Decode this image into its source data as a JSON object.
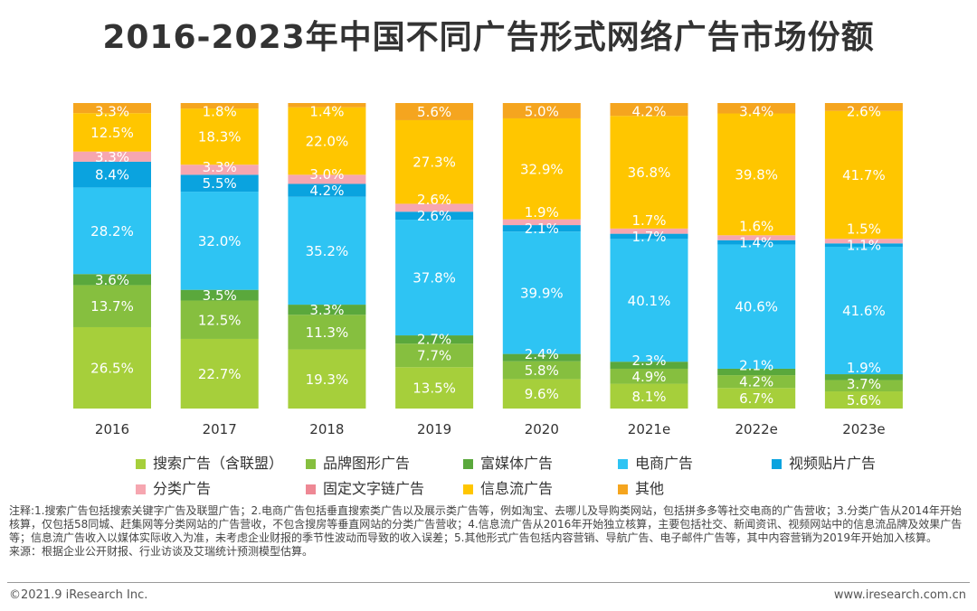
{
  "chart_data": {
    "type": "bar",
    "stacked": true,
    "title": "2016-2023年中国不同广告形式网络广告市场份额",
    "categories": [
      "2016",
      "2017",
      "2018",
      "2019",
      "2020",
      "2021e",
      "2022e",
      "2023e"
    ],
    "ylim": [
      0,
      100
    ],
    "unit": "%",
    "grid": false,
    "legend_placement": "bottom",
    "series": [
      {
        "name": "搜索广告（含联盟）",
        "color": "#a6cf3b",
        "values": [
          26.5,
          22.7,
          19.3,
          13.5,
          9.6,
          8.1,
          6.7,
          5.6
        ]
      },
      {
        "name": "品牌图形广告",
        "color": "#86bf3f",
        "values": [
          13.7,
          12.5,
          11.3,
          7.7,
          5.8,
          4.9,
          4.2,
          3.7
        ]
      },
      {
        "name": "富媒体广告",
        "color": "#5aa83c",
        "values": [
          3.6,
          3.5,
          3.3,
          2.7,
          2.4,
          2.3,
          2.1,
          1.9
        ]
      },
      {
        "name": "电商广告",
        "color": "#2ec4f3",
        "values": [
          28.2,
          32.0,
          35.2,
          37.8,
          39.9,
          40.1,
          40.6,
          41.6
        ]
      },
      {
        "name": "视频贴片广告",
        "color": "#0aa3df",
        "values": [
          8.4,
          5.5,
          4.2,
          2.6,
          2.1,
          1.7,
          1.4,
          1.1
        ]
      },
      {
        "name": "分类广告",
        "color": "#f6a6b0",
        "values": [
          3.3,
          3.3,
          3.0,
          2.6,
          1.9,
          1.7,
          1.6,
          1.5
        ]
      },
      {
        "name": "固定文字链广告",
        "color": "#ee8894",
        "values": [
          null,
          null,
          null,
          null,
          null,
          null,
          null,
          null
        ]
      },
      {
        "name": "信息流广告",
        "color": "#ffc600",
        "values": [
          12.5,
          18.3,
          22.0,
          27.3,
          32.9,
          36.8,
          39.8,
          41.7
        ]
      },
      {
        "name": "其他",
        "color": "#f5a51f",
        "values": [
          3.3,
          1.8,
          1.4,
          5.6,
          5.0,
          4.2,
          3.4,
          2.6
        ]
      }
    ]
  },
  "notes": "注释:1.搜索广告包括搜索关键字广告及联盟广告；2.电商广告包括垂直搜索类广告以及展示类广告等，例如淘宝、去哪儿及导购类网站，包括拼多多等社交电商的广告营收；3.分类广告从2014年开始核算，仅包括58同城、赶集网等分类网站的广告营收，不包含搜房等垂直网站的分类广告营收；4.信息流广告从2016年开始独立核算，主要包括社交、新闻资讯、视频网站中的信息流品牌及效果广告等；信息流广告收入以媒体实际收入为准，未考虑企业财报的季节性波动而导致的收入误差；5.其他形式广告包括内容营销、导航广告、电子邮件广告等，其中内容营销为2019年开始加入核算。",
  "source": "来源：根据企业公开财报、行业访谈及艾瑞统计预测模型估算。",
  "footer": {
    "copyright": "©2021.9 iResearch Inc.",
    "website": "www.iresearch.com.cn"
  }
}
